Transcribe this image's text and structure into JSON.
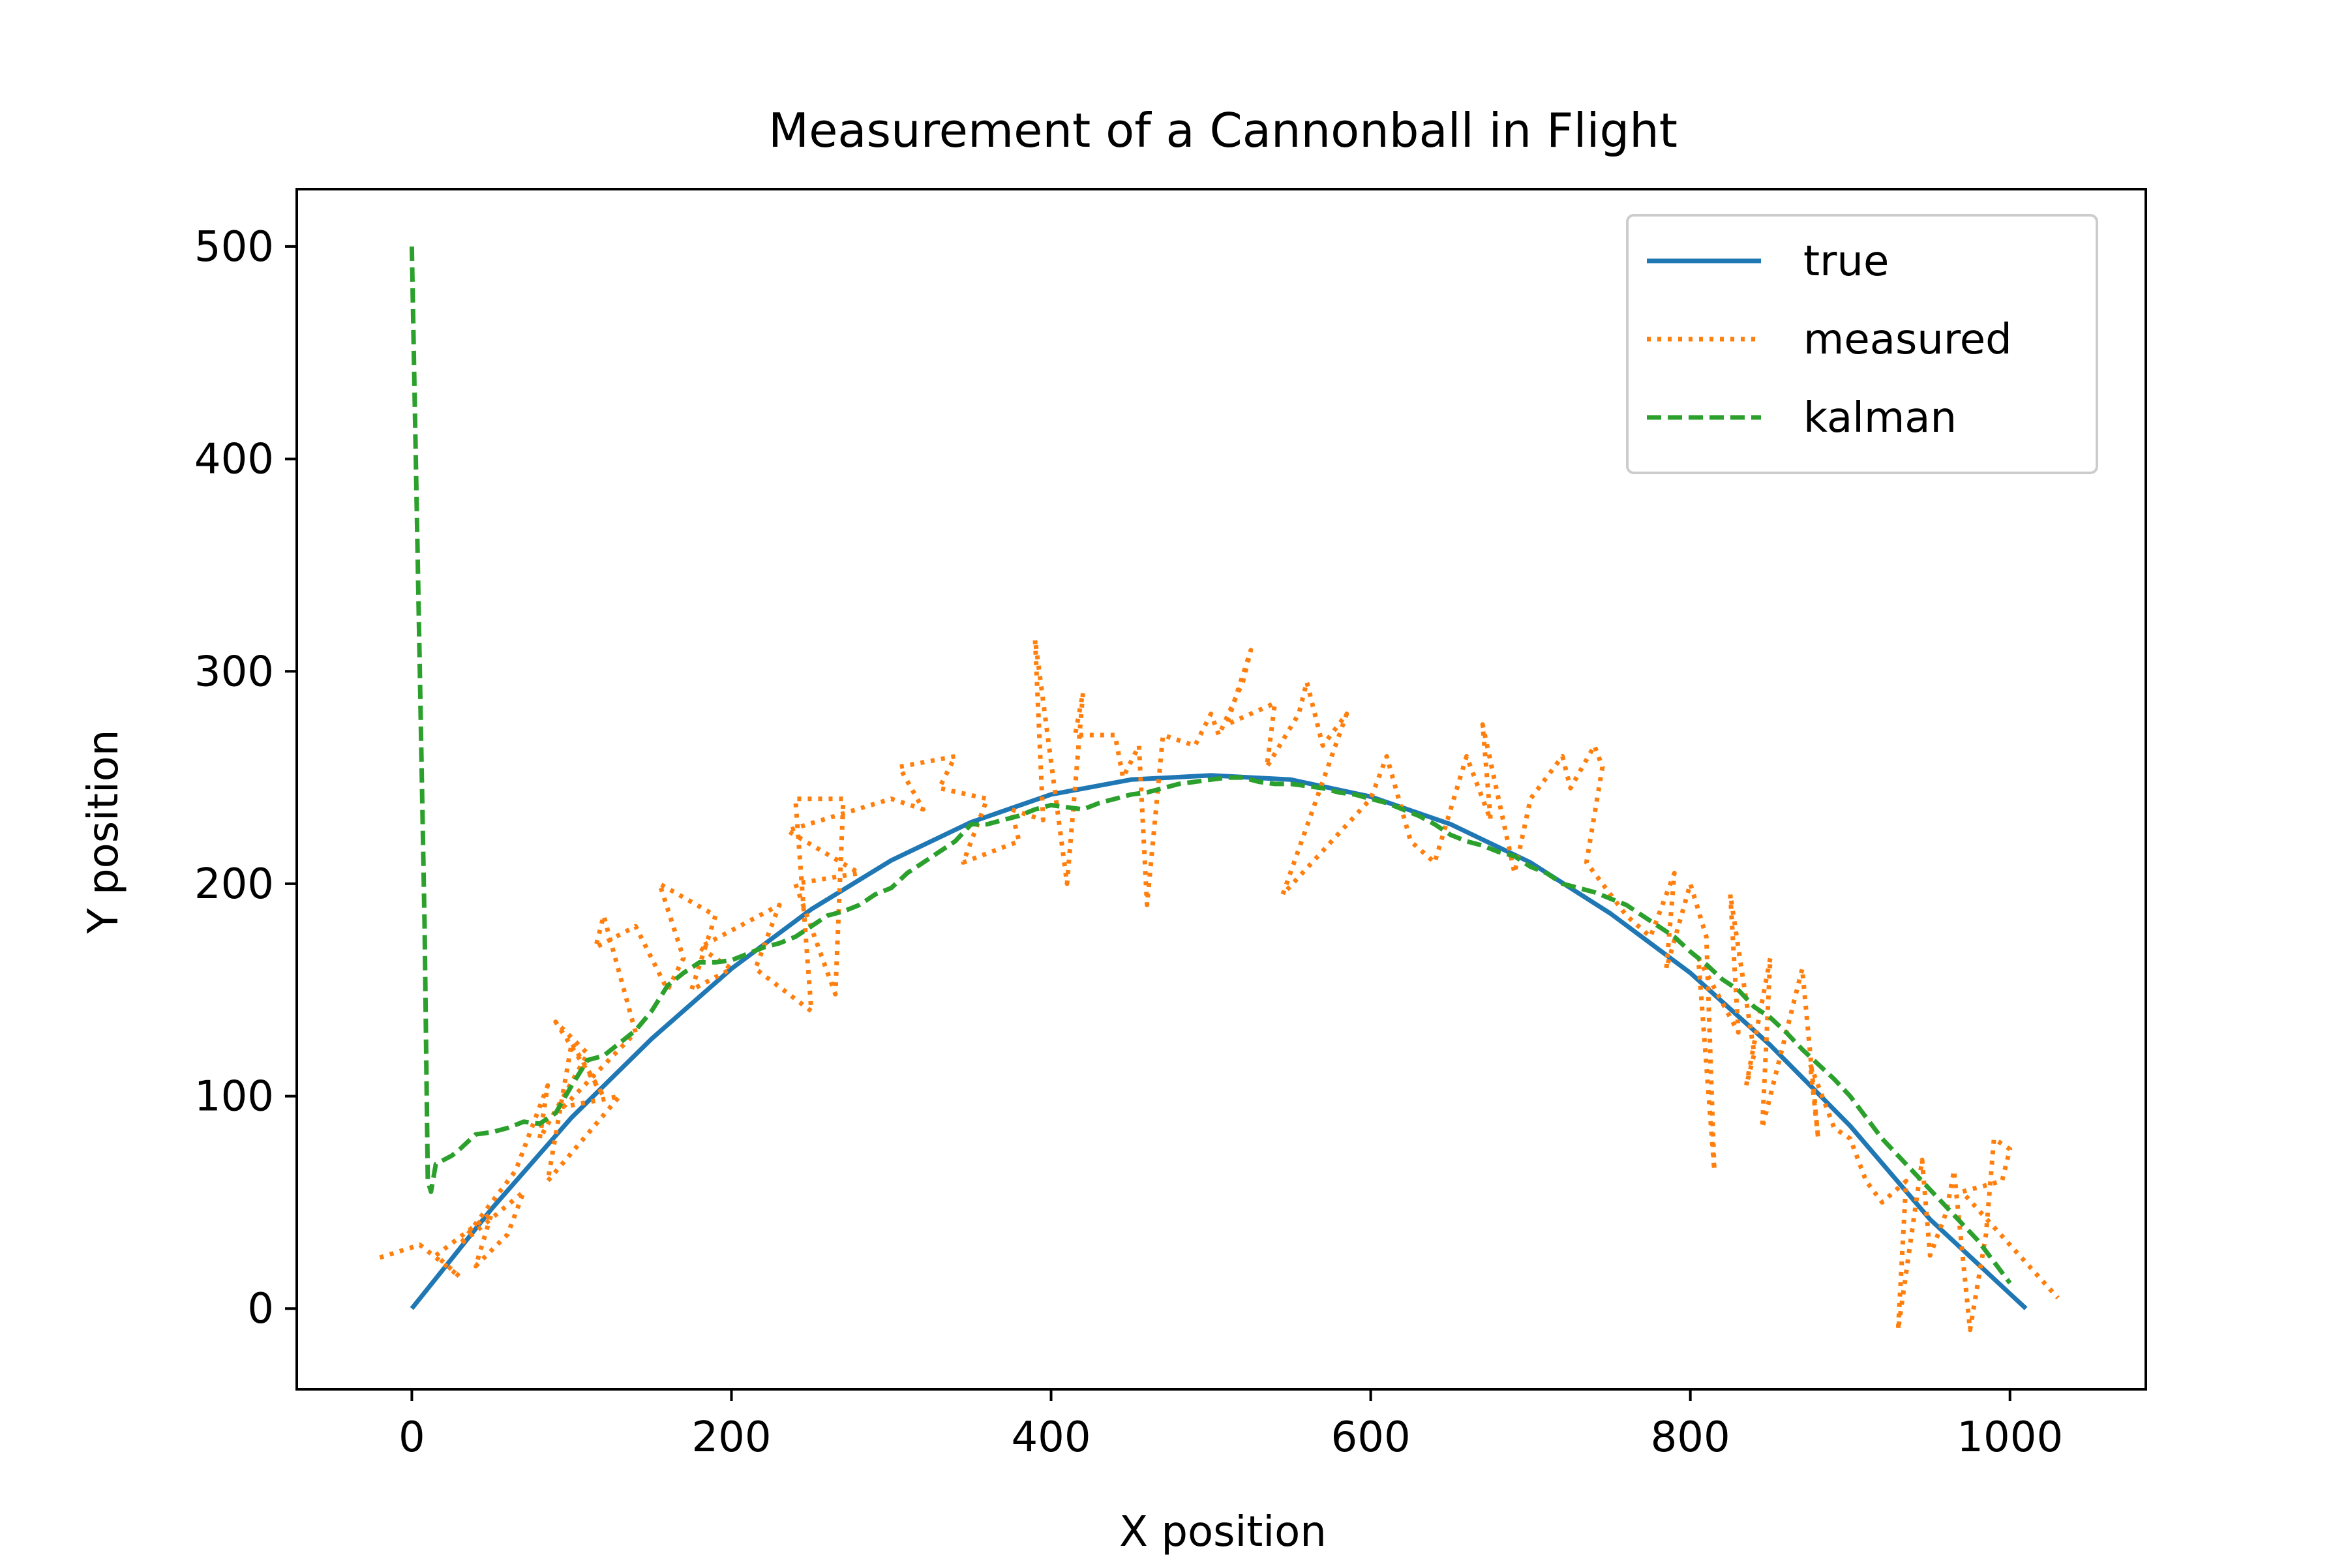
{
  "chart_data": {
    "type": "line",
    "title": "Measurement of a Cannonball in Flight",
    "xlabel": "X position",
    "ylabel": "Y position",
    "xlim": [
      -72,
      1085
    ],
    "ylim": [
      -38,
      527
    ],
    "x_ticks": [
      0,
      200,
      400,
      600,
      800,
      1000
    ],
    "y_ticks": [
      0,
      100,
      200,
      300,
      400,
      500
    ],
    "grid": false,
    "legend_position": "top-right",
    "series": [
      {
        "name": "true",
        "style": "solid",
        "color": "#1f77b4",
        "x": [
          0,
          50,
          100,
          150,
          200,
          250,
          300,
          350,
          400,
          450,
          500,
          550,
          600,
          650,
          700,
          750,
          800,
          850,
          900,
          950,
          1000,
          1010
        ],
        "y": [
          0,
          47,
          90,
          127,
          160,
          188,
          211,
          229,
          242,
          249,
          251,
          249,
          241,
          228,
          210,
          186,
          158,
          124,
          86,
          42,
          7,
          0
        ]
      },
      {
        "name": "measured",
        "style": "dotted",
        "color": "#ff7f0e",
        "x": [
          -20,
          5,
          30,
          15,
          50,
          40,
          60,
          70,
          30,
          65,
          85,
          80,
          110,
          90,
          120,
          100,
          85,
          130,
          95,
          140,
          120,
          115,
          140,
          160,
          170,
          155,
          190,
          175,
          200,
          180,
          230,
          215,
          250,
          240,
          270,
          265,
          240,
          280,
          235,
          300,
          320,
          305,
          340,
          330,
          360,
          345,
          380,
          375,
          395,
          390,
          410,
          420,
          415,
          440,
          445,
          455,
          460,
          470,
          490,
          500,
          505,
          520,
          525,
          510,
          540,
          535,
          555,
          560,
          570,
          585,
          545,
          600,
          610,
          625,
          640,
          660,
          675,
          670,
          690,
          700,
          720,
          725,
          740,
          745,
          735,
          760,
          775,
          790,
          785,
          800,
          810,
          815,
          805,
          830,
          825,
          840,
          835,
          850,
          845,
          860,
          870,
          880,
          875,
          890,
          900,
          910,
          920,
          935,
          930,
          945,
          950,
          960,
          965,
          975,
          985,
          990,
          1000,
          995,
          970,
          1030
        ],
        "y": [
          24,
          30,
          15,
          25,
          45,
          20,
          35,
          55,
          30,
          65,
          105,
          80,
          120,
          135,
          100,
          125,
          60,
          100,
          95,
          130,
          185,
          170,
          180,
          150,
          165,
          200,
          185,
          150,
          160,
          170,
          190,
          160,
          140,
          240,
          240,
          148,
          200,
          205,
          225,
          240,
          235,
          255,
          260,
          245,
          240,
          210,
          220,
          235,
          230,
          315,
          200,
          290,
          270,
          270,
          250,
          265,
          190,
          270,
          265,
          280,
          270,
          295,
          310,
          275,
          285,
          255,
          280,
          295,
          265,
          280,
          195,
          240,
          260,
          220,
          210,
          260,
          230,
          275,
          205,
          240,
          260,
          245,
          265,
          255,
          210,
          185,
          175,
          205,
          160,
          200,
          175,
          65,
          165,
          130,
          195,
          120,
          105,
          165,
          85,
          130,
          160,
          80,
          115,
          85,
          80,
          60,
          50,
          60,
          -10,
          70,
          25,
          45,
          65,
          -10,
          35,
          80,
          75,
          60,
          55,
          5
        ]
      },
      {
        "name": "kalman",
        "style": "dashed",
        "color": "#2ca02c",
        "x": [
          0,
          2,
          5,
          8,
          10,
          12,
          15,
          20,
          25,
          30,
          40,
          50,
          60,
          70,
          80,
          90,
          100,
          110,
          120,
          130,
          140,
          150,
          160,
          170,
          180,
          190,
          200,
          210,
          220,
          230,
          240,
          250,
          260,
          270,
          280,
          290,
          300,
          310,
          320,
          330,
          340,
          350,
          360,
          370,
          380,
          390,
          400,
          410,
          420,
          430,
          440,
          450,
          460,
          470,
          480,
          490,
          500,
          510,
          520,
          530,
          540,
          550,
          560,
          570,
          580,
          590,
          600,
          610,
          620,
          630,
          640,
          650,
          660,
          670,
          680,
          690,
          700,
          710,
          720,
          730,
          740,
          750,
          760,
          770,
          780,
          790,
          800,
          810,
          820,
          830,
          840,
          850,
          860,
          870,
          880,
          890,
          900,
          910,
          920,
          930,
          940,
          950,
          960,
          970,
          980,
          990,
          1000
        ],
        "y": [
          500,
          420,
          300,
          180,
          60,
          55,
          68,
          70,
          72,
          75,
          82,
          83,
          85,
          88,
          87,
          92,
          105,
          117,
          119,
          125,
          131,
          140,
          152,
          158,
          163,
          163,
          164,
          167,
          170,
          172,
          175,
          180,
          185,
          187,
          190,
          195,
          198,
          205,
          210,
          215,
          220,
          228,
          228,
          230,
          232,
          235,
          237,
          236,
          235,
          238,
          240,
          242,
          243,
          245,
          247,
          248,
          249,
          250,
          250,
          248,
          247,
          247,
          246,
          245,
          243,
          242,
          240,
          238,
          235,
          232,
          228,
          223,
          220,
          218,
          215,
          213,
          208,
          205,
          200,
          198,
          196,
          193,
          190,
          185,
          180,
          175,
          168,
          162,
          155,
          150,
          142,
          137,
          130,
          122,
          115,
          108,
          100,
          90,
          80,
          72,
          64,
          56,
          48,
          40,
          32,
          22,
          12
        ]
      }
    ]
  }
}
